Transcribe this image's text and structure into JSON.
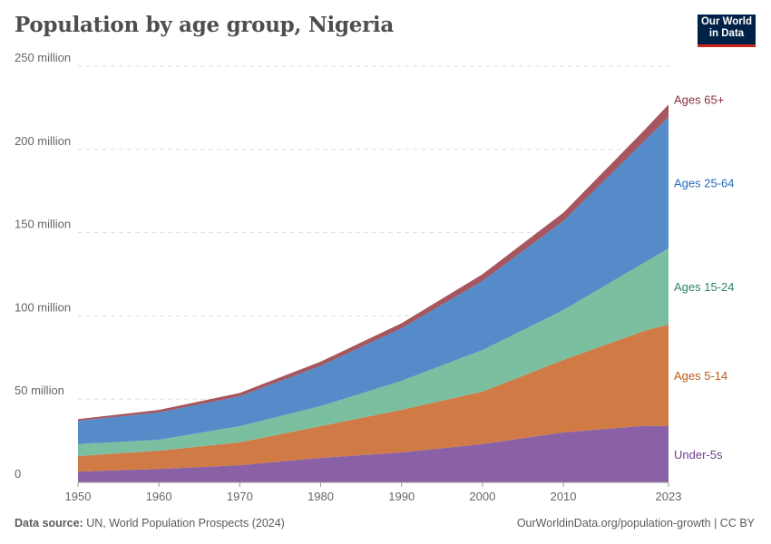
{
  "title": "Population by age group, Nigeria",
  "logo": {
    "line1": "Our World",
    "line2": "in Data"
  },
  "footer": {
    "source_label": "Data source:",
    "source": "UN, World Population Prospects (2024)",
    "link": "OurWorldinData.org/population-growth | CC BY"
  },
  "chart_data": {
    "type": "area",
    "stacked": true,
    "x": [
      1950,
      1960,
      1970,
      1980,
      1990,
      2000,
      2010,
      2020,
      2023
    ],
    "xticks": [
      "1950",
      "1960",
      "1970",
      "1980",
      "1990",
      "2000",
      "2010",
      "2023"
    ],
    "xtick_values": [
      1950,
      1960,
      1970,
      1980,
      1990,
      2000,
      2010,
      2023
    ],
    "yticks": [
      "0",
      "50 million",
      "100 million",
      "150 million",
      "200 million",
      "250 million"
    ],
    "ytick_values": [
      0,
      50,
      100,
      150,
      200,
      250
    ],
    "unit": "million",
    "ylim": [
      0,
      250
    ],
    "grid": "horizontal dashed",
    "legend": "right, inline labels",
    "series": [
      {
        "name": "Under-5s",
        "color": "#8a61a6",
        "label_color": "#6d3e91",
        "values": [
          6.5,
          8,
          10.3,
          14.7,
          18,
          23,
          30,
          34,
          33.8
        ]
      },
      {
        "name": "Ages 5-14",
        "color": "#d07a45",
        "label_color": "#c05917",
        "values": [
          9.3,
          11,
          13.7,
          19.1,
          25.6,
          31.5,
          43.5,
          57,
          61
        ]
      },
      {
        "name": "Ages 15-24",
        "color": "#7abf9f",
        "label_color": "#2c8465",
        "values": [
          7.2,
          6.6,
          9.8,
          12,
          17.4,
          25,
          30,
          41,
          45.7
        ]
      },
      {
        "name": "Ages 25-64",
        "color": "#548bc8",
        "label_color": "#286bbb",
        "values": [
          14,
          16.4,
          17.9,
          24.2,
          31.6,
          41.5,
          53.5,
          73,
          79
        ]
      },
      {
        "name": "Ages 65+",
        "color": "#a6565e",
        "label_color": "#883039",
        "values": [
          1,
          1.5,
          2,
          2.5,
          3,
          4,
          5,
          6.5,
          7.5
        ]
      }
    ]
  }
}
